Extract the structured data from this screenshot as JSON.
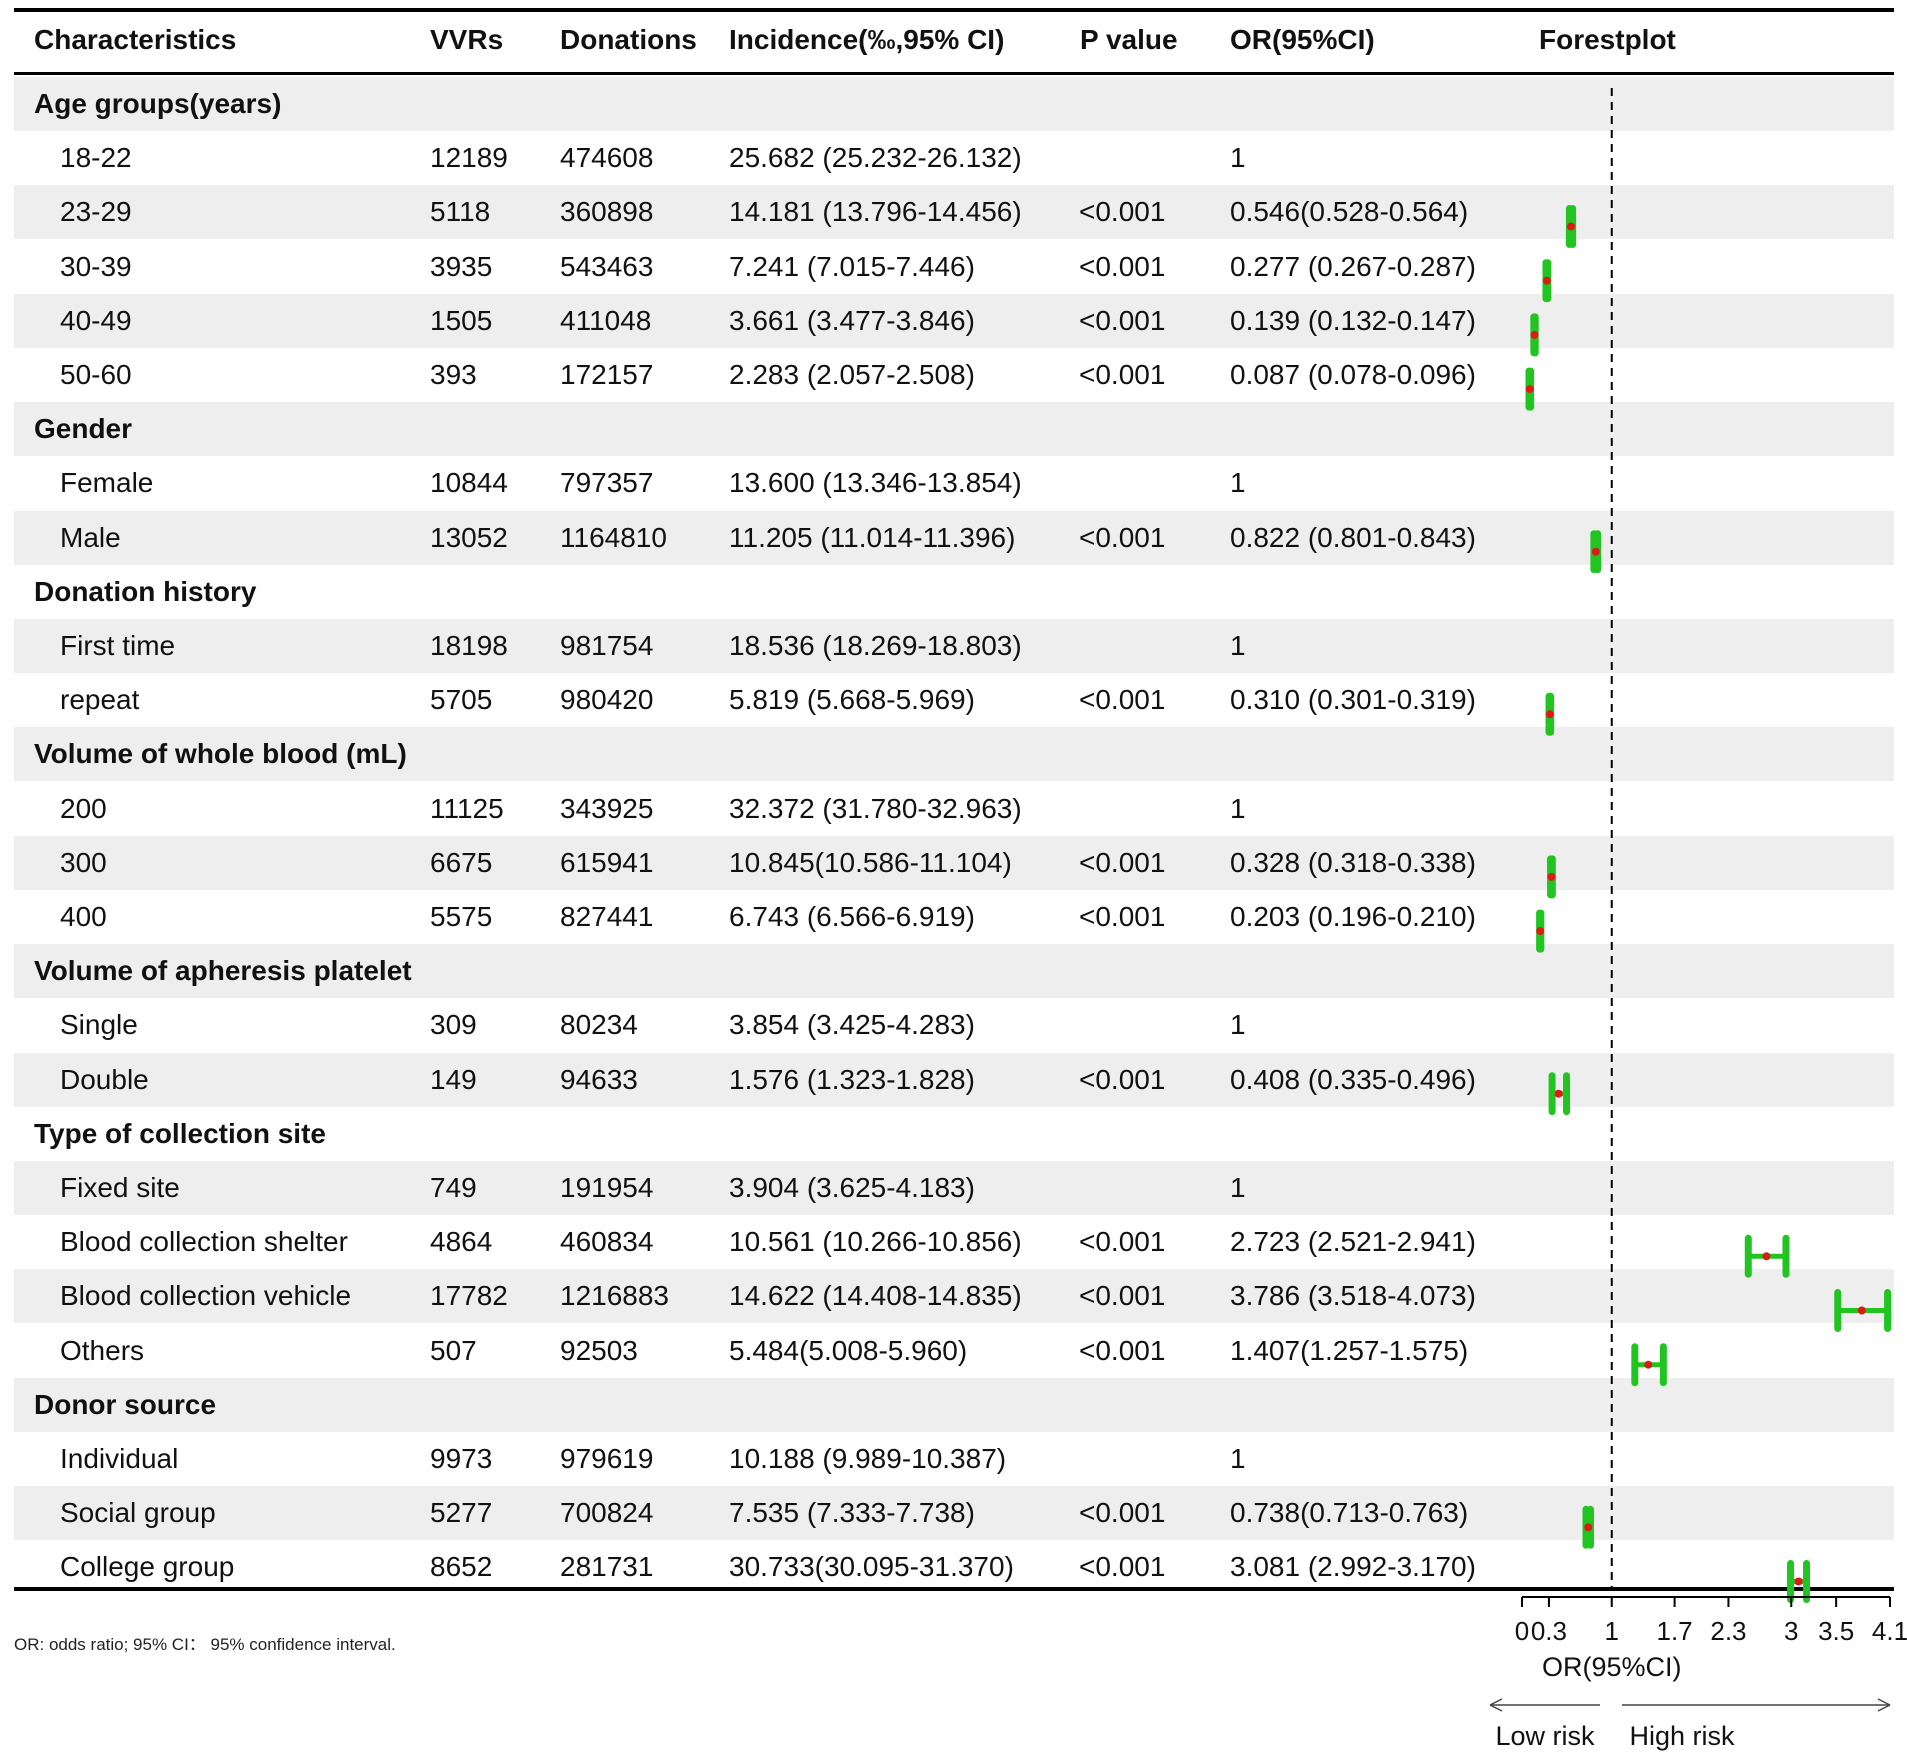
{
  "headers": {
    "characteristics": "Characteristics",
    "vvrs": "VVRs",
    "donations": "Donations",
    "incidence": "Incidence(‰,95% CI)",
    "p_value": "P value",
    "or": "OR(95%CI)",
    "forestplot": "Forestplot"
  },
  "rows": [
    {
      "type": "group",
      "label": "Age groups(years)"
    },
    {
      "type": "sub",
      "label": "18-22",
      "vvrs": "12189",
      "donations": "474608",
      "incidence": "25.682 (25.232-26.132)",
      "p": "",
      "or_text": "1"
    },
    {
      "type": "sub",
      "label": "23-29",
      "vvrs": "5118",
      "donations": "360898",
      "incidence": "14.181 (13.796-14.456)",
      "p": "<0.001",
      "or_text": "0.546(0.528-0.564)"
    },
    {
      "type": "sub",
      "label": "30-39",
      "vvrs": "3935",
      "donations": "543463",
      "incidence": "7.241 (7.015-7.446)",
      "p": "<0.001",
      "or_text": "0.277 (0.267-0.287)"
    },
    {
      "type": "sub",
      "label": "40-49",
      "vvrs": "1505",
      "donations": "411048",
      "incidence": "3.661 (3.477-3.846)",
      "p": "<0.001",
      "or_text": "0.139 (0.132-0.147)"
    },
    {
      "type": "sub",
      "label": "50-60",
      "vvrs": "393",
      "donations": "172157",
      "incidence": "2.283 (2.057-2.508)",
      "p": "<0.001",
      "or_text": "0.087 (0.078-0.096)"
    },
    {
      "type": "group",
      "label": "Gender"
    },
    {
      "type": "sub",
      "label": "Female",
      "vvrs": "10844",
      "donations": "797357",
      "incidence": "13.600 (13.346-13.854)",
      "p": "",
      "or_text": "1"
    },
    {
      "type": "sub",
      "label": "Male",
      "vvrs": "13052",
      "donations": "1164810",
      "incidence": "11.205 (11.014-11.396)",
      "p": "<0.001",
      "or_text": "0.822 (0.801-0.843)"
    },
    {
      "type": "group",
      "label": "Donation history"
    },
    {
      "type": "sub",
      "label": "First time",
      "vvrs": "18198",
      "donations": "981754",
      "incidence": "18.536 (18.269-18.803)",
      "p": "",
      "or_text": "1"
    },
    {
      "type": "sub",
      "label": "repeat",
      "vvrs": "5705",
      "donations": "980420",
      "incidence": "5.819 (5.668-5.969)",
      "p": "<0.001",
      "or_text": "0.310 (0.301-0.319)"
    },
    {
      "type": "group",
      "label": "Volume of  whole blood (mL)"
    },
    {
      "type": "sub",
      "label": "200",
      "vvrs": "11125",
      "donations": "343925",
      "incidence": "32.372 (31.780-32.963)",
      "p": "",
      "or_text": "1"
    },
    {
      "type": "sub",
      "label": "300",
      "vvrs": "6675",
      "donations": "615941",
      "incidence": "10.845(10.586-11.104)",
      "p": "<0.001",
      "or_text": "0.328 (0.318-0.338)"
    },
    {
      "type": "sub",
      "label": "400",
      "vvrs": "5575",
      "donations": "827441",
      "incidence": "6.743 (6.566-6.919)",
      "p": "<0.001",
      "or_text": "0.203 (0.196-0.210)"
    },
    {
      "type": "group",
      "label": "Volume of apheresis platelet"
    },
    {
      "type": "sub",
      "label": "Single",
      "vvrs": "309",
      "donations": "80234",
      "incidence": "3.854 (3.425-4.283)",
      "p": "",
      "or_text": "1"
    },
    {
      "type": "sub",
      "label": "Double",
      "vvrs": "149",
      "donations": "94633",
      "incidence": "1.576 (1.323-1.828)",
      "p": "<0.001",
      "or_text": "0.408 (0.335-0.496)"
    },
    {
      "type": "group",
      "label": "Type of collection site"
    },
    {
      "type": "sub",
      "label": "Fixed site",
      "vvrs": "749",
      "donations": "191954",
      "incidence": "3.904 (3.625-4.183)",
      "p": "",
      "or_text": "1"
    },
    {
      "type": "sub",
      "label": "Blood collection shelter",
      "vvrs": "4864",
      "donations": "460834",
      "incidence": "10.561 (10.266-10.856)",
      "p": "<0.001",
      "or_text": "2.723 (2.521-2.941)"
    },
    {
      "type": "sub",
      "label": "Blood collection vehicle",
      "vvrs": "17782",
      "donations": "1216883",
      "incidence": "14.622 (14.408-14.835)",
      "p": "<0.001",
      "or_text": "3.786 (3.518-4.073)"
    },
    {
      "type": "sub",
      "label": "Others",
      "vvrs": "507",
      "donations": "92503",
      "incidence": "5.484(5.008-5.960)",
      "p": "<0.001",
      "or_text": "1.407(1.257-1.575)"
    },
    {
      "type": "group",
      "label": "Donor source"
    },
    {
      "type": "sub",
      "label": "Individual",
      "vvrs": "9973",
      "donations": "979619",
      "incidence": "10.188 (9.989-10.387)",
      "p": "",
      "or_text": "1"
    },
    {
      "type": "sub",
      "label": "Social group",
      "vvrs": "5277",
      "donations": "700824",
      "incidence": "7.535 (7.333-7.738)",
      "p": "<0.001",
      "or_text": "0.738(0.713-0.763)"
    },
    {
      "type": "sub",
      "label": "College group",
      "vvrs": "8652",
      "donations": "281731",
      "incidence": "30.733(30.095-31.370)",
      "p": "<0.001",
      "or_text": "3.081 (2.992-3.170)"
    }
  ],
  "footnote": "OR: odds ratio; 95% CI： 95% confidence interval.",
  "chart_data": {
    "type": "forest",
    "reference_line": 1,
    "xlim": [
      0,
      4.1
    ],
    "xticks": [
      0,
      0.3,
      1,
      1.7,
      2.3,
      3,
      3.5,
      4.1
    ],
    "xtick_labels": [
      "0",
      "0.3",
      "1",
      "1.7",
      "2.3",
      "3",
      "3.5",
      "4.1"
    ],
    "xlabel": "OR(95%CI)",
    "arrow_left_label": "Low risk",
    "arrow_right_label": "High risk",
    "points": [
      {
        "label": "23-29",
        "or": 0.546,
        "lower": 0.528,
        "upper": 0.564
      },
      {
        "label": "30-39",
        "or": 0.277,
        "lower": 0.267,
        "upper": 0.287
      },
      {
        "label": "40-49",
        "or": 0.139,
        "lower": 0.132,
        "upper": 0.147
      },
      {
        "label": "50-60",
        "or": 0.087,
        "lower": 0.078,
        "upper": 0.096
      },
      {
        "label": "Male",
        "or": 0.822,
        "lower": 0.801,
        "upper": 0.843
      },
      {
        "label": "repeat",
        "or": 0.31,
        "lower": 0.301,
        "upper": 0.319
      },
      {
        "label": "300",
        "or": 0.328,
        "lower": 0.318,
        "upper": 0.338
      },
      {
        "label": "400",
        "or": 0.203,
        "lower": 0.196,
        "upper": 0.21
      },
      {
        "label": "Double",
        "or": 0.408,
        "lower": 0.335,
        "upper": 0.496
      },
      {
        "label": "Blood collection shelter",
        "or": 2.723,
        "lower": 2.521,
        "upper": 2.941
      },
      {
        "label": "Blood collection vehicle",
        "or": 3.786,
        "lower": 3.518,
        "upper": 4.073
      },
      {
        "label": "Others",
        "or": 1.407,
        "lower": 1.257,
        "upper": 1.575
      },
      {
        "label": "Social group",
        "or": 0.738,
        "lower": 0.713,
        "upper": 0.763
      },
      {
        "label": "College group",
        "or": 3.081,
        "lower": 2.992,
        "upper": 3.17
      }
    ],
    "colors": {
      "ci": "#22c422",
      "point": "#e01818",
      "reference": "#000000"
    }
  }
}
